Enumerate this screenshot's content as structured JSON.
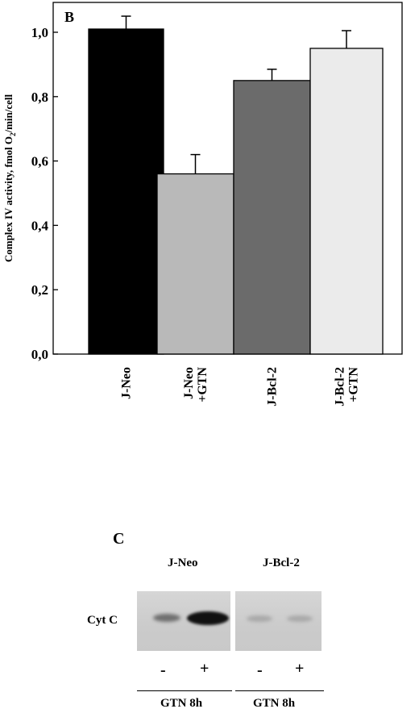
{
  "chart_data": {
    "type": "bar",
    "panel_label": "B",
    "ylabel": "Complex IV activity, fmol O2/min/cell",
    "ylim": [
      0,
      1.0
    ],
    "yticks": [
      "0,0",
      "0,2",
      "0,4",
      "0,6",
      "0,8",
      "1,0"
    ],
    "ytick_values": [
      0,
      0.2,
      0.4,
      0.6,
      0.8,
      1.0
    ],
    "categories": [
      [
        "J-Neo"
      ],
      [
        "J-Neo",
        "+GTN"
      ],
      [
        "J-Bcl-2"
      ],
      [
        "J-Bcl-2",
        "+GTN"
      ]
    ],
    "values": [
      1.01,
      0.56,
      0.85,
      0.95
    ],
    "errors": [
      0.04,
      0.06,
      0.035,
      0.055
    ],
    "colors": [
      "#000000",
      "#b9b9b9",
      "#6b6b6b",
      "#ebebeb"
    ]
  },
  "panel_c": {
    "label": "C",
    "groups": [
      "J-Neo",
      "J-Bcl-2"
    ],
    "row_label": "Cyt C",
    "lane_signs": [
      "-",
      "+",
      "-",
      "+"
    ],
    "treatments": [
      "GTN 8h",
      "GTN 8h"
    ]
  }
}
